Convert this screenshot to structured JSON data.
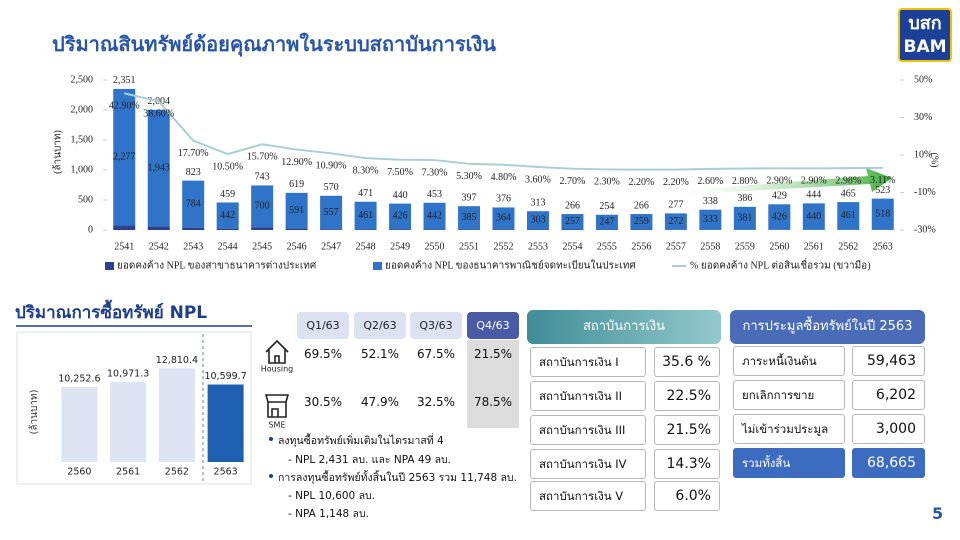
{
  "logo": {
    "thai": "บสก",
    "english": "BAM"
  },
  "page_number": "5",
  "chart_data": [
    {
      "type": "bar",
      "stacked": true,
      "title": "ปริมาณสินทรัพย์ด้อยคุณภาพในระบบสถาบันการเงิน",
      "y_label": "(ล้านบาท)",
      "y2_label": "(%)",
      "categories": [
        "2541",
        "2542",
        "2543",
        "2544",
        "2545",
        "2546",
        "2547",
        "2548",
        "2549",
        "2550",
        "2551",
        "2552",
        "2553",
        "2554",
        "2555",
        "2556",
        "2557",
        "2558",
        "2559",
        "2560",
        "2561",
        "2562",
        "2563"
      ],
      "series": [
        {
          "name": "ยอดคงค้าง NPL ของสาขาธนาคารต่างประเทศ",
          "color": "#2e3f8f",
          "values": [
            74,
            61,
            39,
            17,
            43,
            28,
            13,
            10,
            14,
            11,
            12,
            12,
            10,
            9,
            7,
            7,
            5,
            5,
            5,
            3,
            4,
            4,
            5
          ]
        },
        {
          "name": "ยอดคงค้าง NPL ของธนาคารพาณิชย์จดทะเบียนในประเทศ",
          "color": "#2f74c9",
          "values": [
            2277,
            1943,
            784,
            442,
            700,
            591,
            557,
            461,
            426,
            442,
            385,
            364,
            303,
            257,
            247,
            259,
            272,
            333,
            381,
            426,
            440,
            461,
            518
          ],
          "value_labels": [
            "2,277",
            "1,943",
            "784",
            "442",
            "700",
            "591",
            "557",
            "461",
            "426",
            "442",
            "385",
            "364",
            "303",
            "257",
            "247",
            "259",
            "272",
            "333",
            "381",
            "426",
            "440",
            "461",
            "518"
          ]
        },
        {
          "name": "% ยอดคงค้าง NPL ต่อสินเชื่อรวม (ขวามือ)",
          "type": "line",
          "axis": "y2",
          "color": "#a9cfd1",
          "values": [
            42.9,
            38.6,
            17.7,
            10.5,
            15.7,
            12.9,
            10.9,
            8.3,
            7.5,
            7.3,
            5.3,
            4.8,
            3.6,
            2.7,
            2.3,
            2.2,
            2.2,
            2.6,
            2.8,
            2.9,
            2.9,
            2.98,
            3.11
          ],
          "value_labels": [
            "42.90%",
            "38.60%",
            "17.70%",
            "10.50%",
            "15.70%",
            "12.90%",
            "10.90%",
            "8.30%",
            "7.50%",
            "7.30%",
            "5.30%",
            "4.80%",
            "3.60%",
            "2.70%",
            "2.30%",
            "2.20%",
            "2.20%",
            "2.60%",
            "2.80%",
            "2.90%",
            "2.90%",
            "2.98%",
            "3.11%"
          ]
        }
      ],
      "total_labels": [
        "2,351",
        "2,004",
        "823",
        "459",
        "743",
        "619",
        "570",
        "471",
        "440",
        "453",
        "397",
        "376",
        "313",
        "266",
        "254",
        "266",
        "277",
        "338",
        "386",
        "429",
        "444",
        "465",
        "523"
      ],
      "ylim": [
        0,
        2500
      ],
      "yticks": [
        0,
        500,
        {
          "value": 1000,
          "label": "1,000"
        },
        {
          "value": 1500,
          "label": "1,500"
        },
        {
          "value": 2000,
          "label": "2,000"
        },
        {
          "value": 2500,
          "label": "2,500"
        }
      ],
      "y2lim": [
        -30,
        50
      ],
      "y2ticks": [
        {
          "value": -30,
          "label": "-30%"
        },
        {
          "value": -10,
          "label": "-10%"
        },
        {
          "value": 10,
          "label": "10%"
        },
        {
          "value": 30,
          "label": "30%"
        },
        {
          "value": 50,
          "label": "50%"
        }
      ],
      "legend": "bottom"
    },
    {
      "type": "bar",
      "title": "ปริมาณการซื้อทรัพย์ NPL",
      "y_label": "(ล้านบาท)",
      "categories": [
        "2560",
        "2561",
        "2562",
        "2563"
      ],
      "values": [
        10252.6,
        10971.3,
        12810.4,
        10599.7
      ],
      "value_labels": [
        "10,252.6",
        "10,971.3",
        "12,810.4",
        "10,599.7"
      ],
      "colors": [
        "#dfe4f4",
        "#dfe4f4",
        "#dfe4f4",
        "#1f5fb0"
      ],
      "ylim": [
        0,
        16000
      ]
    }
  ],
  "quarter_table": {
    "columns": [
      "Q1/63",
      "Q2/63",
      "Q3/63",
      "Q4/63"
    ],
    "rows": [
      {
        "label": "Housing",
        "cells": [
          "69.5%",
          "52.1%",
          "67.5%",
          "21.5%"
        ]
      },
      {
        "label": "SME",
        "cells": [
          "30.5%",
          "47.9%",
          "32.5%",
          "78.5%"
        ]
      }
    ]
  },
  "bullets": [
    {
      "text": "ลงทุนซื้อทรัพย์เพิ่มเติมในไตรมาสที่ 4",
      "items": [
        "- NPL 2,431 ลบ. และ NPA 49 ลบ."
      ]
    },
    {
      "text": "การลงทุนซื้อทรัพย์ทั้งสิ้นในปี 2563 รวม 11,748 ลบ.",
      "items": [
        "- NPL 10,600 ลบ.",
        "- NPA 1,148 ลบ."
      ]
    }
  ],
  "institutions": {
    "header": "สถาบันการเงิน",
    "rows": [
      {
        "label": "สถาบันการเงิน I",
        "value": "35.6 %"
      },
      {
        "label": "สถาบันการเงิน II",
        "value": "22.5%"
      },
      {
        "label": "สถาบันการเงิน III",
        "value": "21.5%"
      },
      {
        "label": "สถาบันการเงิน IV",
        "value": "14.3%"
      },
      {
        "label": "สถาบันการเงิน V",
        "value": "6.0%"
      }
    ]
  },
  "auction": {
    "header": "การประมูลซื้อทรัพย์ในปี 2563",
    "rows": [
      {
        "label": "ภาระหนี้เงินต้น",
        "value": "59,463"
      },
      {
        "label": "ยกเลิกการขาย",
        "value": "6,202"
      },
      {
        "label": "ไม่เข้าร่วมประมูล",
        "value": "3,000"
      },
      {
        "label": "รวมทั้งสิ้น",
        "value": "68,665"
      }
    ]
  }
}
